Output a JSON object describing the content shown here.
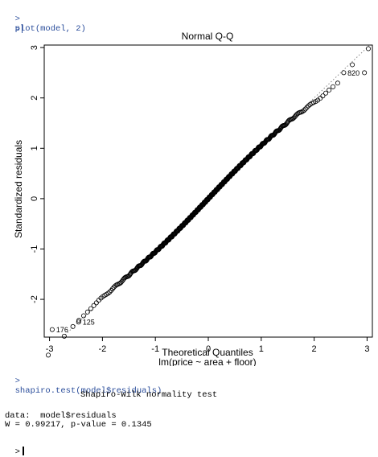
{
  "console": {
    "prompt": ">",
    "command1": "plot(model, 2)",
    "command2": "shapiro.test(model$residuals)",
    "test_title": "Shapiro-Wilk normality test",
    "data_line": "data:  model$residuals",
    "result_line": "W = 0.99217, p-value = 0.1345"
  },
  "chart_data": {
    "type": "scatter",
    "title": "Normal Q-Q",
    "xlabel": "Theoretical Quantiles",
    "subtitle": "lm(price ~ area + floor)",
    "ylabel": "Standardized residuals",
    "xlim": [
      -3.1,
      3.1
    ],
    "ylim": [
      -2.75,
      3.05
    ],
    "xticks": [
      -3,
      -2,
      -1,
      0,
      1,
      2,
      3
    ],
    "yticks": [
      -2,
      -1,
      0,
      1,
      2,
      3
    ],
    "grid": false,
    "reference_line": {
      "slope": 1,
      "intercept": 0,
      "style": "dotted"
    },
    "labeled_points": [
      {
        "label": "820",
        "x": 2.95,
        "y": 2.5
      },
      {
        "label": "125",
        "x": -2.45,
        "y": -2.45
      },
      {
        "label": "176",
        "x": -2.95,
        "y": -2.6
      }
    ],
    "points_description": "approximately 500 residual points following the reference line",
    "n_points": 500
  }
}
